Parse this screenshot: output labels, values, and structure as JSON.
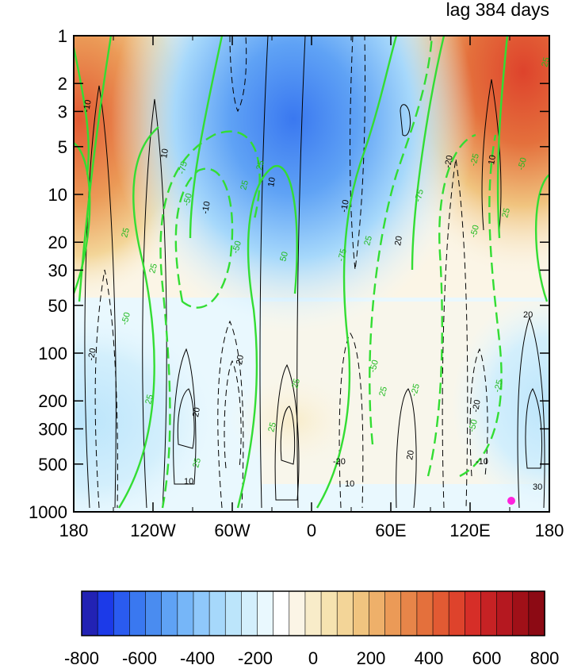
{
  "chart_data": {
    "type": "heatmap",
    "title": "lag 384 days",
    "x_tick_labels": [
      "180",
      "120W",
      "60W",
      "0",
      "60E",
      "120E",
      "180"
    ],
    "x_tick_values": [
      -180,
      -120,
      -60,
      0,
      60,
      120,
      180
    ],
    "y_tick_labels": [
      "1",
      "2",
      "3",
      "5",
      "10",
      "20",
      "30",
      "50",
      "100",
      "200",
      "300",
      "500",
      "1000"
    ],
    "y_tick_values": [
      1,
      2,
      3,
      5,
      10,
      20,
      30,
      50,
      100,
      200,
      300,
      500,
      1000
    ],
    "ylim": [
      1,
      1000
    ],
    "xlim": [
      -180,
      180
    ],
    "y_scale": "log",
    "y_reversed": true,
    "colorbar": {
      "levels": [
        -800,
        -750,
        -700,
        -650,
        -600,
        -550,
        -500,
        -450,
        -400,
        -350,
        -300,
        -250,
        -200,
        -150,
        -100,
        -50,
        0,
        50,
        100,
        150,
        200,
        250,
        300,
        350,
        400,
        450,
        500,
        550,
        600,
        650,
        700,
        750,
        800
      ],
      "labels": [
        "-800",
        "-600",
        "-400",
        "-200",
        "0",
        "200",
        "400",
        "600",
        "800"
      ],
      "label_values": [
        -800,
        -600,
        -400,
        -200,
        0,
        200,
        400,
        600,
        800
      ],
      "colors": [
        "#2222b4",
        "#1c3ae8",
        "#2a5bf0",
        "#3a78f0",
        "#4a8cf0",
        "#5fa2f5",
        "#76b6f8",
        "#8fc8fb",
        "#a6d8fb",
        "#bce5fb",
        "#d3effc",
        "#e9f8fe",
        "#ffffff",
        "#fbf5e6",
        "#f8ecc9",
        "#f6e3b0",
        "#f3d598",
        "#f0c47f",
        "#eeb06a",
        "#eb9a57",
        "#e78549",
        "#e4703c",
        "#e25a33",
        "#de432c",
        "#d62e28",
        "#c62224",
        "#b51820",
        "#a01018",
        "#8c0a14"
      ]
    },
    "shading_field": [
      {
        "lat_band": "1-5 hPa",
        "regions": [
          {
            "lon": [
              -180,
              -130
            ],
            "value": 500
          },
          {
            "lon": [
              -70,
              20
            ],
            "value": -500
          },
          {
            "lon": [
              100,
              180
            ],
            "value": 650
          }
        ]
      },
      {
        "lat_band": "10-50 hPa",
        "regions": [
          {
            "lon": [
              -180,
              -120
            ],
            "value": 300
          },
          {
            "lon": [
              -90,
              60
            ],
            "value": -300
          },
          {
            "lon": [
              90,
              180
            ],
            "value": 200
          }
        ]
      },
      {
        "lat_band": "100-1000 hPa",
        "regions": [
          {
            "lon": [
              -180,
              -110
            ],
            "value": -100
          },
          {
            "lon": [
              -30,
              20
            ],
            "value": 75
          },
          {
            "lon": [
              150,
              180
            ],
            "value": -100
          }
        ]
      }
    ],
    "green_contour_labels": [
      "-25",
      "-50",
      "-75",
      "25",
      "50",
      "75"
    ],
    "black_contour_labels": [
      "-10",
      "-20",
      "10",
      "20",
      "30"
    ],
    "marker": {
      "lon": 151,
      "pressure": 880,
      "color": "#ff22dd"
    }
  }
}
